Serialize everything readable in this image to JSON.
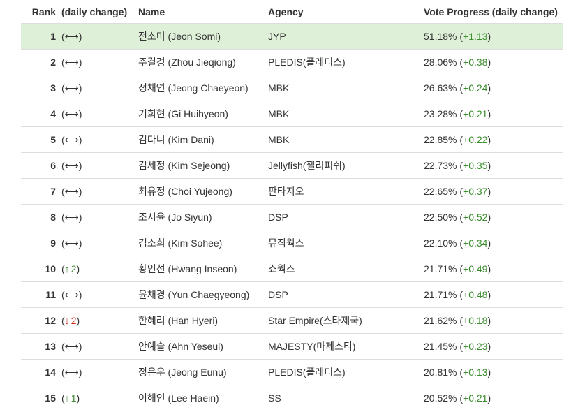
{
  "headers": {
    "rank": "Rank",
    "change": "(daily change)",
    "name": "Name",
    "agency": "Agency",
    "vote": "Vote Progress (daily change)"
  },
  "rows": [
    {
      "rank": "1",
      "dir": "same",
      "amt": "",
      "name": "전소미 (Jeon Somi)",
      "agency": "JYP",
      "pct": "51.18%",
      "delta": "+1.13"
    },
    {
      "rank": "2",
      "dir": "same",
      "amt": "",
      "name": "주결경 (Zhou Jieqiong)",
      "agency": "PLEDIS(플레디스)",
      "pct": "28.06%",
      "delta": "+0.38"
    },
    {
      "rank": "3",
      "dir": "same",
      "amt": "",
      "name": "정채연 (Jeong Chaeyeon)",
      "agency": "MBK",
      "pct": "26.63%",
      "delta": "+0.24"
    },
    {
      "rank": "4",
      "dir": "same",
      "amt": "",
      "name": "기희현 (Gi Huihyeon)",
      "agency": "MBK",
      "pct": "23.28%",
      "delta": "+0.21"
    },
    {
      "rank": "5",
      "dir": "same",
      "amt": "",
      "name": "김다니 (Kim Dani)",
      "agency": "MBK",
      "pct": "22.85%",
      "delta": "+0.22"
    },
    {
      "rank": "6",
      "dir": "same",
      "amt": "",
      "name": "김세정 (Kim Sejeong)",
      "agency": "Jellyfish(젤리피쉬)",
      "pct": "22.73%",
      "delta": "+0.35"
    },
    {
      "rank": "7",
      "dir": "same",
      "amt": "",
      "name": "최유정 (Choi Yujeong)",
      "agency": "판타지오",
      "pct": "22.65%",
      "delta": "+0.37"
    },
    {
      "rank": "8",
      "dir": "same",
      "amt": "",
      "name": "조시윤 (Jo Siyun)",
      "agency": "DSP",
      "pct": "22.50%",
      "delta": "+0.52"
    },
    {
      "rank": "9",
      "dir": "same",
      "amt": "",
      "name": "김소희 (Kim Sohee)",
      "agency": "뮤직웍스",
      "pct": "22.10%",
      "delta": "+0.34"
    },
    {
      "rank": "10",
      "dir": "up",
      "amt": "2",
      "name": "황인선 (Hwang Inseon)",
      "agency": "쇼웍스",
      "pct": "21.71%",
      "delta": "+0.49"
    },
    {
      "rank": "11",
      "dir": "same",
      "amt": "",
      "name": "윤채경 (Yun Chaegyeong)",
      "agency": "DSP",
      "pct": "21.71%",
      "delta": "+0.48"
    },
    {
      "rank": "12",
      "dir": "down",
      "amt": "2",
      "name": "한혜리 (Han Hyeri)",
      "agency": "Star Empire(스타제국)",
      "pct": "21.62%",
      "delta": "+0.18"
    },
    {
      "rank": "13",
      "dir": "same",
      "amt": "",
      "name": "안예슬 (Ahn Yeseul)",
      "agency": "MAJESTY(마제스티)",
      "pct": "21.45%",
      "delta": "+0.23"
    },
    {
      "rank": "14",
      "dir": "same",
      "amt": "",
      "name": "정은우 (Jeong Eunu)",
      "agency": "PLEDIS(플레디스)",
      "pct": "20.81%",
      "delta": "+0.13"
    },
    {
      "rank": "15",
      "dir": "up",
      "amt": "1",
      "name": "이해인 (Lee Haein)",
      "agency": "SS",
      "pct": "20.52%",
      "delta": "+0.21"
    }
  ],
  "symbols": {
    "same": "⟷",
    "up": "↑",
    "down": "↓",
    "open": "(",
    "close": ")"
  },
  "colors": {
    "highlight_row": "#dff0d8",
    "positive": "#3c8d2f",
    "negative": "#cc2b1b"
  }
}
